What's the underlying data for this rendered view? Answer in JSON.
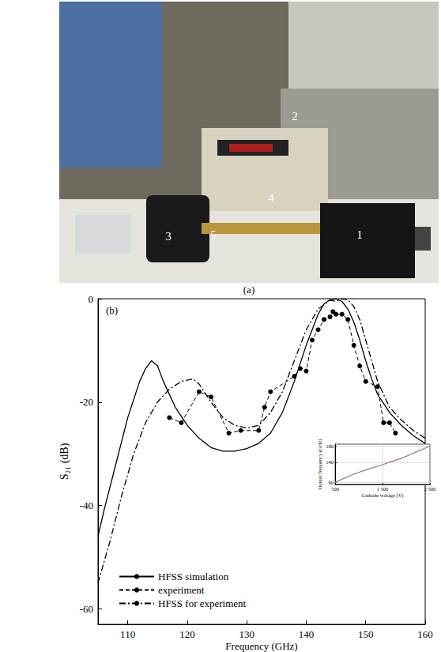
{
  "photo": {
    "caption": "(a)",
    "labels": [
      "1",
      "2",
      "3",
      "4",
      "5"
    ]
  },
  "chart_data": [
    {
      "type": "line",
      "panel_label": "(b)",
      "xlabel": "Frequency (GHz)",
      "ylabel": "S₂₁ (dB)",
      "xlim": [
        105,
        160
      ],
      "xticks": [
        110,
        120,
        130,
        140,
        150,
        160
      ],
      "ylim": [
        -63,
        0
      ],
      "yticks": [
        -60,
        -40,
        -20,
        0
      ],
      "grid": false,
      "legend": "lower left",
      "series": [
        {
          "name": "HFSS simulation",
          "color": "#000000",
          "line_style": "solid",
          "marker": "none",
          "x": [
            105,
            106,
            108,
            110,
            112,
            113,
            114,
            115,
            116,
            118,
            120,
            122,
            124,
            126,
            128,
            130,
            132,
            134,
            136,
            138,
            140,
            141,
            142,
            143,
            144,
            145,
            146,
            147,
            148,
            149,
            150,
            151,
            152,
            154,
            156,
            158,
            160
          ],
          "values": [
            -46,
            -41,
            -32,
            -23,
            -16,
            -13.5,
            -12,
            -13,
            -16,
            -21,
            -24.5,
            -27,
            -28.8,
            -29.5,
            -29.5,
            -29,
            -28,
            -26,
            -22,
            -16,
            -9,
            -6,
            -3,
            -1,
            -0.2,
            0,
            -0.5,
            -2,
            -4.5,
            -8,
            -12,
            -15.5,
            -18.5,
            -22,
            -24.5,
            -26.5,
            -28
          ]
        },
        {
          "name": "experiment",
          "color": "#000000",
          "line_style": "dashed",
          "marker": "circle",
          "x": [
            117,
            119,
            122,
            124,
            127,
            129,
            132,
            133,
            134,
            138,
            139,
            140,
            141,
            142,
            143,
            144,
            144.5,
            145,
            146,
            147,
            148,
            149,
            150,
            152,
            153,
            154,
            155
          ],
          "values": [
            -23,
            -24,
            -18,
            -19,
            -26,
            -25.5,
            -25.5,
            -21,
            -18,
            -15,
            -13.5,
            -14,
            -8,
            -6,
            -4,
            -3.5,
            -2.5,
            -3,
            -3,
            -4,
            -9,
            -13,
            -16,
            -17,
            -24,
            -24,
            -26
          ]
        },
        {
          "name": "HFSS for experiment",
          "color": "#000000",
          "line_style": "dash-dot",
          "marker": "none",
          "x": [
            105,
            107,
            109,
            111,
            113,
            115,
            117,
            119,
            121,
            122,
            124,
            126,
            128,
            130,
            132,
            134,
            136,
            138,
            140,
            142,
            144,
            145,
            146,
            147,
            148,
            149,
            150,
            151,
            152,
            154,
            156,
            158,
            160
          ],
          "values": [
            -55,
            -47,
            -38,
            -30,
            -24,
            -20,
            -17.5,
            -16,
            -15.5,
            -16.5,
            -20,
            -23,
            -24.5,
            -25,
            -24.5,
            -22,
            -18,
            -12,
            -6,
            -2,
            -0.3,
            -0.5,
            0,
            -0.2,
            -1.5,
            -4,
            -8,
            -12,
            -16,
            -21,
            -23.5,
            -25.5,
            -27
          ]
        }
      ]
    },
    {
      "type": "line",
      "xlabel": "Cathode voltage (V)",
      "ylabel": "Output frequency (GHz)",
      "xlim": [
        500,
        2500
      ],
      "xticks": [
        500,
        {
          "value": 1500,
          "label": "1 500"
        },
        {
          "value": 2500,
          "label": "2 500"
        }
      ],
      "ylim": [
        85,
        185
      ],
      "yticks": [
        90,
        140,
        180
      ],
      "grid": true,
      "series": [
        {
          "color": "#a0708e",
          "line_style": "solid",
          "marker": "none",
          "x": [
            500,
            700,
            900,
            1100,
            1300,
            1500,
            1700,
            1900,
            2100,
            2300,
            2500
          ],
          "values": [
            90,
            101,
            111,
            119,
            127,
            134,
            142,
            150,
            160,
            170,
            180
          ]
        }
      ]
    }
  ]
}
